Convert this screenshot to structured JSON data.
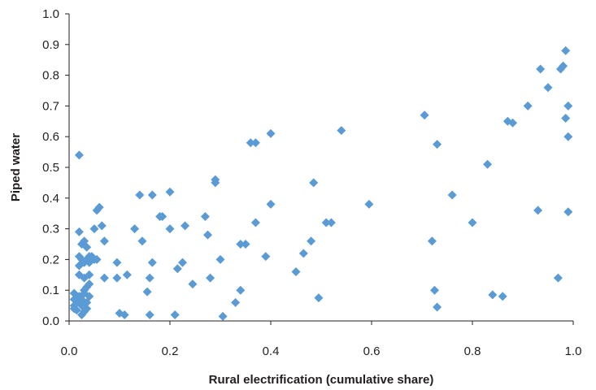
{
  "chart_data": {
    "type": "scatter",
    "title": "",
    "xlabel": "Rural electrification (cumulative share)",
    "ylabel": "Piped water",
    "xlim": [
      0.0,
      1.0
    ],
    "ylim": [
      0.0,
      1.0
    ],
    "x_ticks": [
      "0.0",
      "0.2",
      "0.4",
      "0.6",
      "0.8",
      "1.0"
    ],
    "y_ticks": [
      "0.0",
      "0.1",
      "0.2",
      "0.3",
      "0.4",
      "0.5",
      "0.6",
      "0.7",
      "0.8",
      "0.9",
      "1.0"
    ],
    "grid": false,
    "legend": "none",
    "marker": "diamond",
    "color": "#5b9bd5",
    "points": [
      [
        0.02,
        0.54
      ],
      [
        0.02,
        0.29
      ],
      [
        0.02,
        0.21
      ],
      [
        0.02,
        0.15
      ],
      [
        0.01,
        0.09
      ],
      [
        0.01,
        0.07
      ],
      [
        0.01,
        0.05
      ],
      [
        0.01,
        0.04
      ],
      [
        0.015,
        0.035
      ],
      [
        0.02,
        0.06
      ],
      [
        0.02,
        0.08
      ],
      [
        0.025,
        0.07
      ],
      [
        0.025,
        0.05
      ],
      [
        0.025,
        0.02
      ],
      [
        0.03,
        0.03
      ],
      [
        0.03,
        0.09
      ],
      [
        0.03,
        0.1
      ],
      [
        0.035,
        0.06
      ],
      [
        0.035,
        0.11
      ],
      [
        0.035,
        0.04
      ],
      [
        0.04,
        0.08
      ],
      [
        0.04,
        0.12
      ],
      [
        0.025,
        0.25
      ],
      [
        0.03,
        0.26
      ],
      [
        0.035,
        0.24
      ],
      [
        0.04,
        0.21
      ],
      [
        0.025,
        0.2
      ],
      [
        0.03,
        0.19
      ],
      [
        0.035,
        0.2
      ],
      [
        0.04,
        0.19
      ],
      [
        0.045,
        0.21
      ],
      [
        0.05,
        0.2
      ],
      [
        0.055,
        0.2
      ],
      [
        0.03,
        0.14
      ],
      [
        0.04,
        0.15
      ],
      [
        0.02,
        0.18
      ],
      [
        0.05,
        0.3
      ],
      [
        0.055,
        0.36
      ],
      [
        0.06,
        0.37
      ],
      [
        0.065,
        0.31
      ],
      [
        0.07,
        0.26
      ],
      [
        0.07,
        0.14
      ],
      [
        0.095,
        0.19
      ],
      [
        0.095,
        0.14
      ],
      [
        0.1,
        0.025
      ],
      [
        0.11,
        0.02
      ],
      [
        0.115,
        0.15
      ],
      [
        0.13,
        0.3
      ],
      [
        0.14,
        0.41
      ],
      [
        0.145,
        0.26
      ],
      [
        0.155,
        0.095
      ],
      [
        0.16,
        0.14
      ],
      [
        0.16,
        0.02
      ],
      [
        0.165,
        0.19
      ],
      [
        0.165,
        0.41
      ],
      [
        0.18,
        0.34
      ],
      [
        0.185,
        0.34
      ],
      [
        0.2,
        0.42
      ],
      [
        0.2,
        0.3
      ],
      [
        0.21,
        0.02
      ],
      [
        0.215,
        0.17
      ],
      [
        0.225,
        0.19
      ],
      [
        0.23,
        0.31
      ],
      [
        0.245,
        0.12
      ],
      [
        0.27,
        0.34
      ],
      [
        0.275,
        0.28
      ],
      [
        0.28,
        0.14
      ],
      [
        0.29,
        0.46
      ],
      [
        0.29,
        0.45
      ],
      [
        0.3,
        0.2
      ],
      [
        0.305,
        0.015
      ],
      [
        0.33,
        0.06
      ],
      [
        0.34,
        0.1
      ],
      [
        0.34,
        0.25
      ],
      [
        0.35,
        0.25
      ],
      [
        0.36,
        0.58
      ],
      [
        0.37,
        0.58
      ],
      [
        0.37,
        0.32
      ],
      [
        0.39,
        0.21
      ],
      [
        0.4,
        0.61
      ],
      [
        0.4,
        0.38
      ],
      [
        0.45,
        0.16
      ],
      [
        0.465,
        0.22
      ],
      [
        0.48,
        0.26
      ],
      [
        0.485,
        0.45
      ],
      [
        0.495,
        0.075
      ],
      [
        0.51,
        0.32
      ],
      [
        0.52,
        0.32
      ],
      [
        0.54,
        0.62
      ],
      [
        0.595,
        0.38
      ],
      [
        0.705,
        0.67
      ],
      [
        0.72,
        0.26
      ],
      [
        0.725,
        0.1
      ],
      [
        0.73,
        0.575
      ],
      [
        0.73,
        0.045
      ],
      [
        0.76,
        0.41
      ],
      [
        0.8,
        0.32
      ],
      [
        0.83,
        0.51
      ],
      [
        0.84,
        0.085
      ],
      [
        0.86,
        0.08
      ],
      [
        0.87,
        0.65
      ],
      [
        0.88,
        0.645
      ],
      [
        0.91,
        0.7
      ],
      [
        0.93,
        0.36
      ],
      [
        0.935,
        0.82
      ],
      [
        0.95,
        0.76
      ],
      [
        0.97,
        0.14
      ],
      [
        0.975,
        0.82
      ],
      [
        0.98,
        0.83
      ],
      [
        0.985,
        0.88
      ],
      [
        0.985,
        0.66
      ],
      [
        0.99,
        0.6
      ],
      [
        0.99,
        0.7
      ],
      [
        0.99,
        0.355
      ]
    ]
  }
}
